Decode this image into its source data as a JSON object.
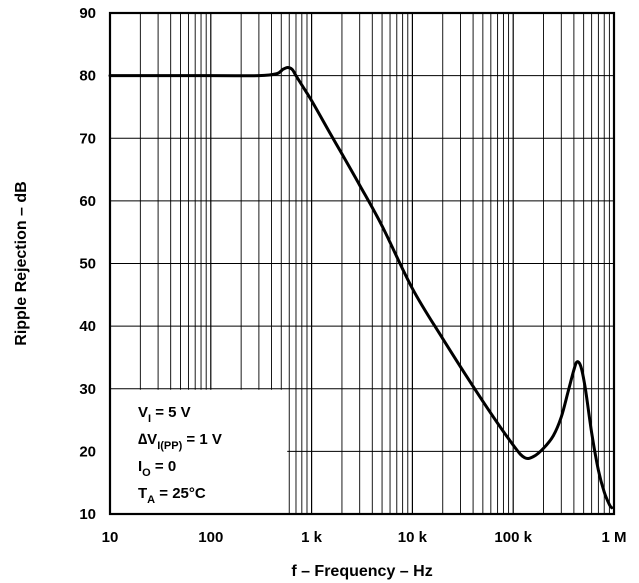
{
  "chart_data": {
    "type": "line",
    "xlabel": "f – Frequency – Hz",
    "ylabel": "Ripple Rejection – dB",
    "xscale": "log",
    "xlim": [
      10,
      1000000
    ],
    "ylim": [
      10,
      90
    ],
    "grid": true,
    "x_tick_labels": [
      {
        "value": 10,
        "label": "10"
      },
      {
        "value": 100,
        "label": "100"
      },
      {
        "value": 1000,
        "label": "1 k"
      },
      {
        "value": 10000,
        "label": "10 k"
      },
      {
        "value": 100000,
        "label": "100 k"
      },
      {
        "value": 1000000,
        "label": "1 M"
      }
    ],
    "y_ticks": [
      10,
      20,
      30,
      40,
      50,
      60,
      70,
      80,
      90
    ],
    "series": [
      {
        "x": [
          10,
          100,
          300,
          450,
          520,
          580,
          640,
          700,
          800,
          1000,
          1500,
          2000,
          3000,
          5000,
          10000,
          20000,
          50000,
          100000,
          130000,
          160000,
          200000,
          250000,
          300000,
          350000,
          400000,
          430000,
          470000,
          520000,
          600000,
          700000,
          800000,
          900000,
          950000
        ],
        "y": [
          80,
          80,
          80,
          80.3,
          81,
          81.3,
          81,
          80,
          78.5,
          76,
          71,
          67.5,
          62.5,
          56,
          46,
          38,
          28,
          21,
          19,
          19.2,
          20.5,
          22.5,
          25.5,
          29.5,
          33,
          34.3,
          33.5,
          30,
          23,
          17,
          13.5,
          11.5,
          11
        ]
      }
    ],
    "annotation": {
      "lines": [
        {
          "main": "V",
          "sub": "I",
          "rest": " = 5 V"
        },
        {
          "main": "∆V",
          "sub": "I(PP)",
          "rest": " = 1 V"
        },
        {
          "main": "I",
          "sub": "O",
          "rest": " = 0"
        },
        {
          "main": "T",
          "sub": "A",
          "rest": " = 25°C"
        }
      ]
    }
  }
}
